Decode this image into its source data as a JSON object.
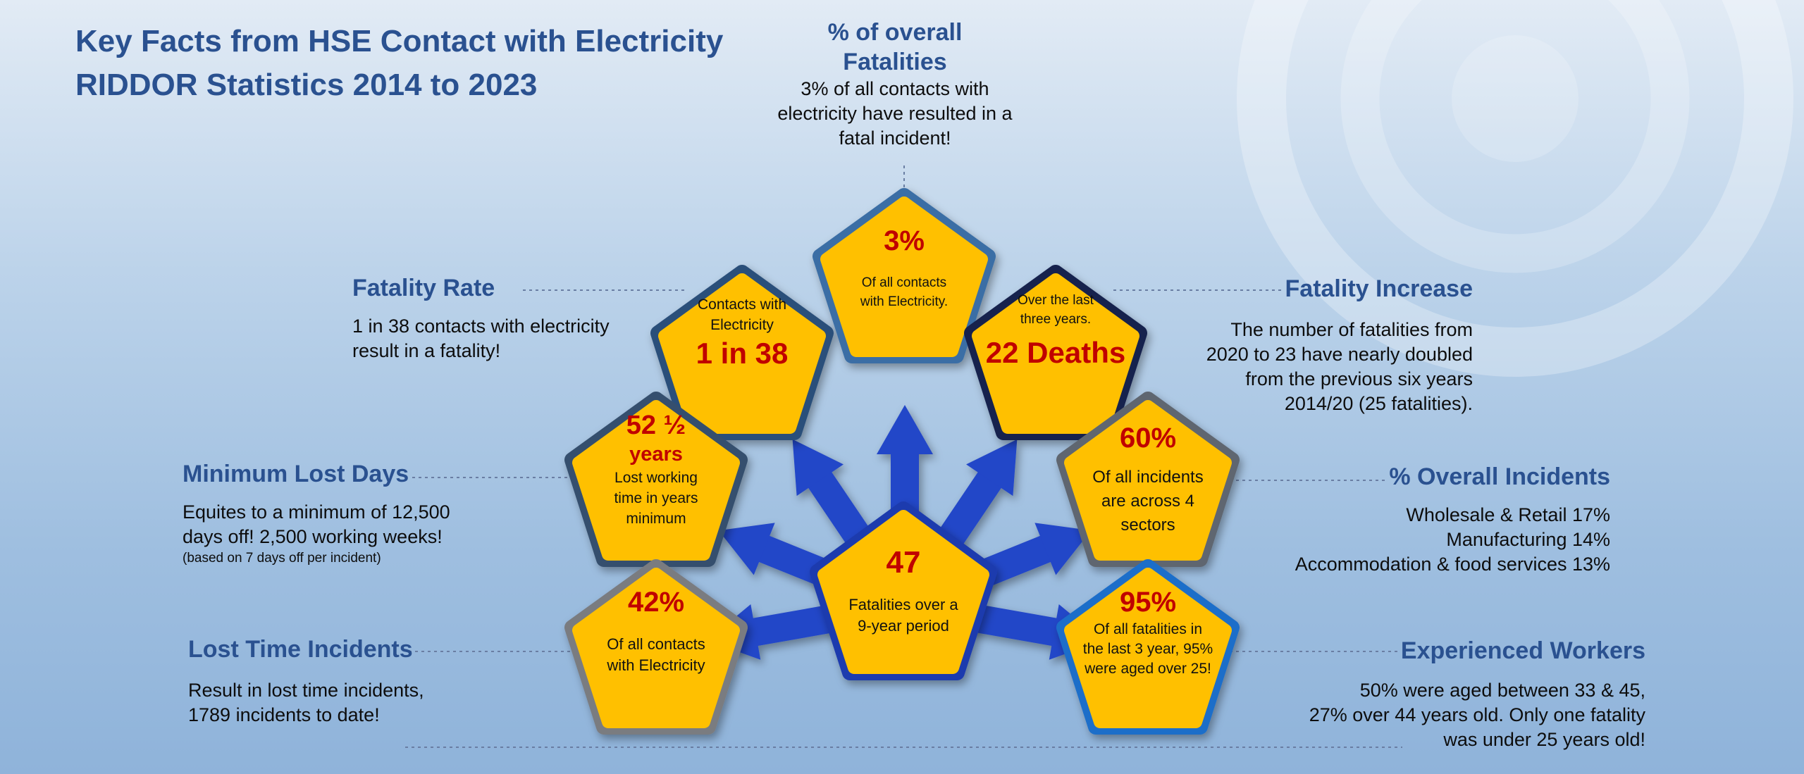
{
  "title_line1": "Key Facts from HSE Contact with Electricity",
  "title_line2": "RIDDOR Statistics 2014 to 2023",
  "colors": {
    "heading": "#2a5190",
    "value_red": "#c00000",
    "pentagon_fill": "#ffc000",
    "arrow_blue": "#2346c8"
  },
  "facts": {
    "overall_fatalities": {
      "heading_line1": "% of overall",
      "heading_line2": "Fatalities",
      "text_line1": "3% of all contacts  with",
      "text_line2": "electricity have resulted in a",
      "text_line3": "fatal incident!"
    },
    "fatality_rate": {
      "heading": "Fatality Rate",
      "text_line1": "1 in 38 contacts with electricity",
      "text_line2": "result in a fatality!"
    },
    "fatality_increase": {
      "heading": "Fatality Increase",
      "text_line1": "The number of fatalities from",
      "text_line2": "2020 to 23 have nearly doubled",
      "text_line3": "from the previous six years",
      "text_line4": "2014/20  (25 fatalities)."
    },
    "minimum_lost_days": {
      "heading": "Minimum Lost Days",
      "text_line1": "Equites to a minimum of 12,500",
      "text_line2": "days off! 2,500 working weeks!",
      "note": "(based on 7 days off per incident)"
    },
    "overall_incidents": {
      "heading": "% Overall Incidents",
      "text_line1": "Wholesale & Retail 17%",
      "text_line2": "Manufacturing 14%",
      "text_line3": "Accommodation & food services 13%"
    },
    "lost_time_incidents": {
      "heading": "Lost Time Incidents",
      "text_line1": "Result in lost time incidents,",
      "text_line2": "1789 incidents to date!"
    },
    "experienced_workers": {
      "heading": "Experienced Workers",
      "text_line1": "50% were aged between 33 & 45,",
      "text_line2": "27% over 44 years old. Only one fatality",
      "text_line3": "was under 25 years old!"
    }
  },
  "pentagons": {
    "p3": {
      "value": "3%",
      "caption_line1": "Of all contacts",
      "caption_line2": "with Electricity."
    },
    "p38": {
      "caption_line1": "Contacts with",
      "caption_line2": "Electricity",
      "value": "1 in 38"
    },
    "p22": {
      "caption_line1": "Over the last",
      "caption_line2": "three years.",
      "value": "22 Deaths"
    },
    "p52": {
      "value_line1": "52 ½",
      "value_line2": "years",
      "caption_line1": "Lost working",
      "caption_line2": "time in years",
      "caption_line3": "minimum"
    },
    "p60": {
      "value": "60%",
      "caption_line1": "Of all incidents",
      "caption_line2": "are across 4",
      "caption_line3": "sectors"
    },
    "p42": {
      "value": "42%",
      "caption_line1": "Of all contacts",
      "caption_line2": "with Electricity"
    },
    "p95": {
      "value": "95%",
      "caption_line1": "Of all fatalities in",
      "caption_line2": "the last 3 year, 95%",
      "caption_line3": "were aged over 25!"
    },
    "center": {
      "value": "47",
      "caption_line1": "Fatalities over a",
      "caption_line2": "9-year period"
    }
  }
}
